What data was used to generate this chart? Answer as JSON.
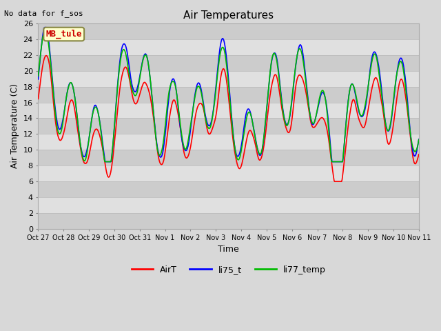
{
  "title": "Air Temperatures",
  "xlabel": "Time",
  "ylabel": "Air Temperature (C)",
  "ylim": [
    0,
    26
  ],
  "no_data_text": "No data for f_sos",
  "station_label": "MB_tule",
  "legend_labels": [
    "AirT",
    "li75_t",
    "li77_temp"
  ],
  "line_colors": [
    "#ff0000",
    "#0000ff",
    "#00bb00"
  ],
  "xtick_labels": [
    "Oct 27",
    "Oct 28",
    "Oct 29",
    "Oct 30",
    "Oct 31",
    "Nov 1",
    "Nov 2",
    "Nov 3",
    "Nov 4",
    "Nov 5",
    "Nov 6",
    "Nov 7",
    "Nov 8",
    "Nov 9",
    "Nov 10",
    "Nov 11"
  ],
  "background_color": "#d8d8d8",
  "plot_bg_color": "#d8d8d8",
  "band_color_light": "#e8e8e8",
  "band_color_dark": "#d0d0d0",
  "fig_width": 6.4,
  "fig_height": 4.8,
  "dpi": 100
}
